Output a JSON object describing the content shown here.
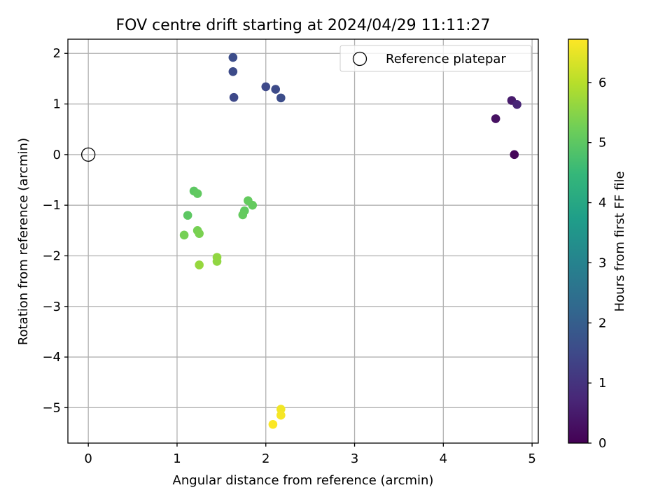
{
  "chart_data": {
    "type": "scatter",
    "title": "FOV centre drift starting at 2024/04/29 11:11:27",
    "xlabel": "Angular distance from reference (arcmin)",
    "ylabel": "Rotation from reference (arcmin)",
    "xlim": [
      -0.23,
      5.07
    ],
    "ylim": [
      -5.7,
      2.28
    ],
    "xticks": [
      0,
      1,
      2,
      3,
      4,
      5
    ],
    "xtick_labels": [
      "0",
      "1",
      "2",
      "3",
      "4",
      "5"
    ],
    "yticks": [
      2,
      1,
      0,
      -1,
      -2,
      -3,
      -4,
      -5
    ],
    "ytick_labels": [
      "2",
      "1",
      "0",
      "−1",
      "−2",
      "−3",
      "−4",
      "−5"
    ],
    "grid": true,
    "legend": {
      "placement": "top-right",
      "entries": [
        "Reference platepar"
      ]
    },
    "reference_point": {
      "label": "Reference platepar",
      "x": 0,
      "y": 0
    },
    "colorbar": {
      "label": "Hours from first FF file",
      "range": [
        0,
        6.72
      ],
      "ticks": [
        0,
        1,
        2,
        3,
        4,
        5,
        6
      ],
      "tick_labels": [
        "0",
        "1",
        "2",
        "3",
        "4",
        "5",
        "6"
      ],
      "colormap": [
        "#440154",
        "#482878",
        "#3e4989",
        "#31688e",
        "#26828e",
        "#1f9e89",
        "#35b779",
        "#6ece58",
        "#b5de2b",
        "#fde725"
      ]
    },
    "points": [
      {
        "x": 4.8,
        "y": 0.0,
        "hours": 0.1
      },
      {
        "x": 4.59,
        "y": 0.71,
        "hours": 0.3
      },
      {
        "x": 4.77,
        "y": 1.07,
        "hours": 0.5
      },
      {
        "x": 4.83,
        "y": 0.99,
        "hours": 0.7
      },
      {
        "x": 1.64,
        "y": 1.13,
        "hours": 1.5
      },
      {
        "x": 1.63,
        "y": 1.64,
        "hours": 1.55
      },
      {
        "x": 1.63,
        "y": 1.92,
        "hours": 1.6
      },
      {
        "x": 2.0,
        "y": 1.34,
        "hours": 1.5
      },
      {
        "x": 2.11,
        "y": 1.29,
        "hours": 1.55
      },
      {
        "x": 2.17,
        "y": 1.12,
        "hours": 1.6
      },
      {
        "x": 1.19,
        "y": -0.72,
        "hours": 5.0
      },
      {
        "x": 1.23,
        "y": -0.77,
        "hours": 5.05
      },
      {
        "x": 1.12,
        "y": -1.2,
        "hours": 5.0
      },
      {
        "x": 1.8,
        "y": -0.91,
        "hours": 5.1
      },
      {
        "x": 1.85,
        "y": -1.0,
        "hours": 5.1
      },
      {
        "x": 1.76,
        "y": -1.11,
        "hours": 5.05
      },
      {
        "x": 1.74,
        "y": -1.19,
        "hours": 5.1
      },
      {
        "x": 1.08,
        "y": -1.59,
        "hours": 5.3
      },
      {
        "x": 1.23,
        "y": -1.5,
        "hours": 5.3
      },
      {
        "x": 1.25,
        "y": -1.56,
        "hours": 5.35
      },
      {
        "x": 1.45,
        "y": -2.03,
        "hours": 5.6
      },
      {
        "x": 1.45,
        "y": -2.11,
        "hours": 5.6
      },
      {
        "x": 1.25,
        "y": -2.18,
        "hours": 5.65
      },
      {
        "x": 2.17,
        "y": -5.03,
        "hours": 6.6
      },
      {
        "x": 2.17,
        "y": -5.15,
        "hours": 6.65
      },
      {
        "x": 2.08,
        "y": -5.33,
        "hours": 6.7
      }
    ]
  }
}
